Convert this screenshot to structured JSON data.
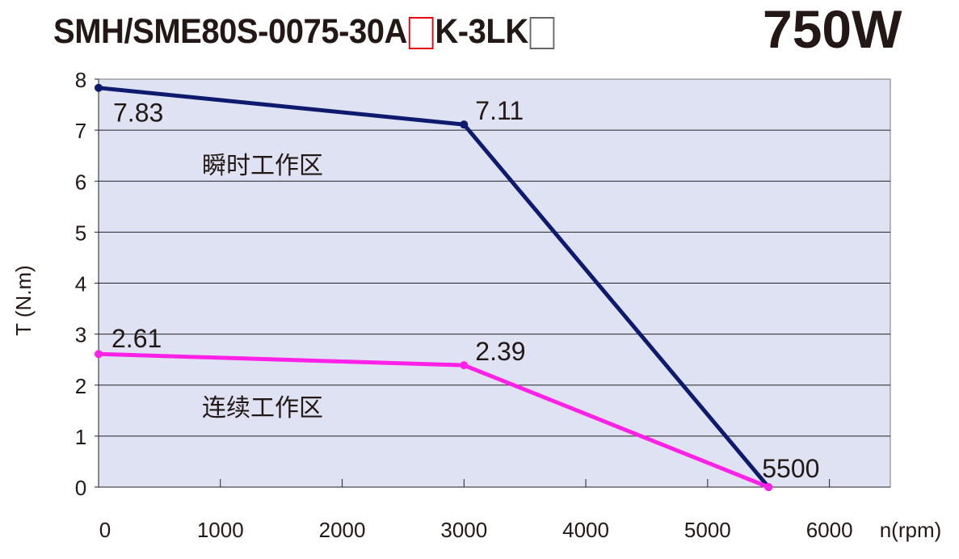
{
  "title": {
    "model_prefix": "SMH/SME80S-0075-30A",
    "model_suffix": "K-3LK",
    "placeholder_box_colors": [
      "#e60012",
      "#666666"
    ],
    "power": "750W"
  },
  "chart_data": {
    "type": "line",
    "xlabel": "n(rpm)",
    "ylabel": "T (N.m)",
    "xlim": [
      0,
      6500
    ],
    "ylim": [
      0,
      8
    ],
    "xticks": [
      0,
      1000,
      2000,
      3000,
      4000,
      5000,
      6000
    ],
    "yticks": [
      0,
      1,
      2,
      3,
      4,
      5,
      6,
      7,
      8
    ],
    "grid": "horizontal",
    "background": "#dfe2f3",
    "series": [
      {
        "color": "#0d1a6e",
        "x": [
          0,
          3000,
          5500
        ],
        "y": [
          7.83,
          7.11,
          0
        ]
      },
      {
        "color": "#ff22e6",
        "x": [
          0,
          3000,
          5500
        ],
        "y": [
          2.61,
          2.39,
          0
        ]
      }
    ],
    "annotations": [
      {
        "text": "7.83",
        "x": 0,
        "y": 7.83
      },
      {
        "text": "7.11",
        "x": 3000,
        "y": 7.11
      },
      {
        "text": "2.61",
        "x": 0,
        "y": 2.61
      },
      {
        "text": "2.39",
        "x": 3000,
        "y": 2.39
      },
      {
        "text": "5500",
        "x": 5500,
        "y": 0
      }
    ],
    "region_labels": [
      "瞬时工作区",
      "连续工作区"
    ]
  }
}
